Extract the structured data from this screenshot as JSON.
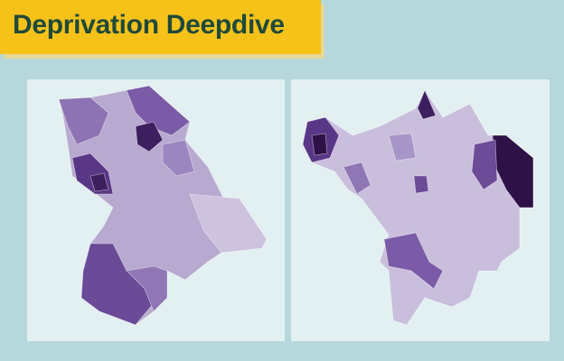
{
  "header": {
    "title": "Deprivation Deepdive"
  }
}
